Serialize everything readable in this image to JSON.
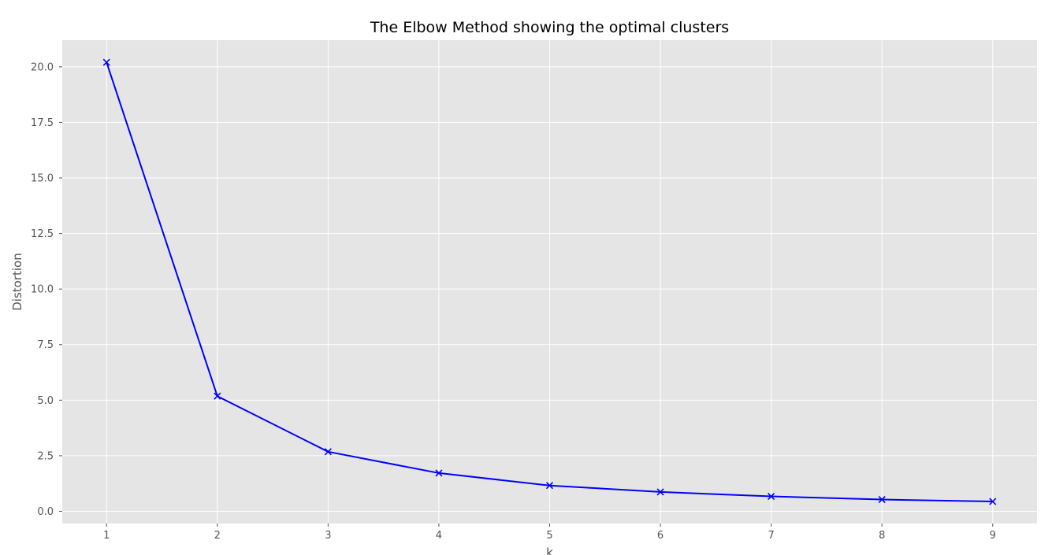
{
  "chart_data": {
    "type": "line",
    "title": "The Elbow Method showing the optimal clusters",
    "xlabel": "k",
    "ylabel": "Distortion",
    "x": [
      1,
      2,
      3,
      4,
      5,
      6,
      7,
      8,
      9
    ],
    "series": [
      {
        "values": [
          20.2,
          5.18,
          2.68,
          1.72,
          1.16,
          0.87,
          0.67,
          0.53,
          0.44
        ],
        "color": "#0000ff",
        "marker": "x"
      }
    ],
    "xticks": [
      "1",
      "2",
      "3",
      "4",
      "5",
      "6",
      "7",
      "8",
      "9"
    ],
    "yticks": [
      "0.0",
      "2.5",
      "5.0",
      "7.5",
      "10.0",
      "12.5",
      "15.0",
      "17.5",
      "20.0"
    ],
    "xlim": [
      0.6,
      9.4
    ],
    "ylim": [
      -0.55,
      21.2
    ],
    "grid": true,
    "plot_background": "#e5e5e5"
  }
}
